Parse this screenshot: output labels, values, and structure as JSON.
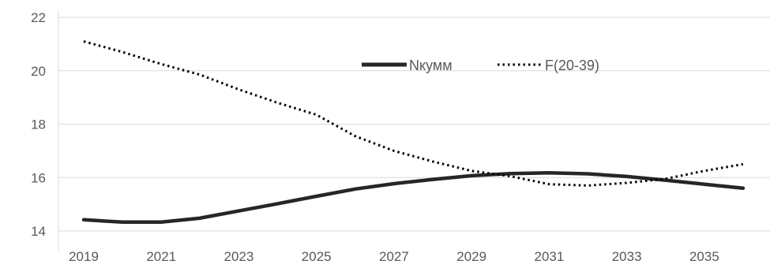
{
  "chart_data": {
    "type": "line",
    "title": "",
    "xlabel": "",
    "ylabel": "",
    "x": [
      2019,
      2020,
      2021,
      2022,
      2023,
      2024,
      2025,
      2026,
      2027,
      2028,
      2029,
      2030,
      2031,
      2032,
      2033,
      2034,
      2035,
      2036
    ],
    "x_tick_labels": [
      "2019",
      "2021",
      "2023",
      "2025",
      "2027",
      "2029",
      "2031",
      "2033",
      "2035"
    ],
    "x_ticks": [
      2019,
      2021,
      2023,
      2025,
      2027,
      2029,
      2031,
      2033,
      2035
    ],
    "xlim": [
      2019,
      2036
    ],
    "ylim": [
      14,
      22
    ],
    "y_ticks": [
      14,
      16,
      18,
      20,
      22
    ],
    "y_tick_labels": [
      "14",
      "16",
      "18",
      "20",
      "22"
    ],
    "grid": "horizontal",
    "legend_position": "top-center",
    "series": [
      {
        "name": "Nкумм",
        "style": "solid",
        "color": "#262626",
        "values": [
          14.42,
          14.33,
          14.33,
          14.48,
          14.75,
          15.02,
          15.3,
          15.57,
          15.77,
          15.93,
          16.07,
          16.15,
          16.18,
          16.14,
          16.04,
          15.9,
          15.75,
          15.6
        ]
      },
      {
        "name": "F(20-39)",
        "style": "dotted",
        "color": "#000000",
        "values": [
          21.1,
          20.7,
          20.25,
          19.85,
          19.3,
          18.8,
          18.35,
          17.55,
          17.0,
          16.6,
          16.25,
          16.05,
          15.75,
          15.7,
          15.8,
          15.95,
          16.25,
          16.5
        ]
      }
    ]
  }
}
